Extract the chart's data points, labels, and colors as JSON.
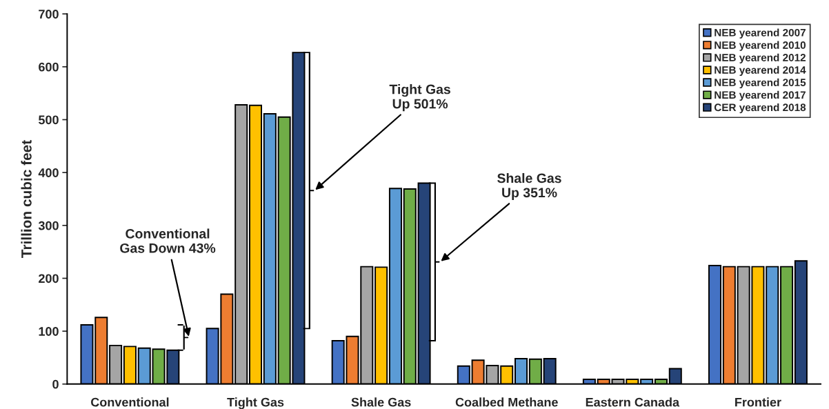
{
  "chart_data": {
    "type": "bar",
    "ylabel": "Trillion cubic feet",
    "categories": [
      "Conventional",
      "Tight Gas",
      "Shale Gas",
      "Coalbed Methane",
      "Eastern Canada",
      "Frontier"
    ],
    "series": [
      {
        "name": "NEB yearend 2007",
        "color": "#4472c4",
        "values": [
          112,
          105,
          82,
          34,
          9,
          224
        ]
      },
      {
        "name": "NEB yearend 2010",
        "color": "#ed7d31",
        "values": [
          126,
          170,
          90,
          45,
          9,
          222
        ]
      },
      {
        "name": "NEB yearend 2012",
        "color": "#a5a5a5",
        "values": [
          73,
          528,
          222,
          35,
          9,
          222
        ]
      },
      {
        "name": "NEB yearend 2014",
        "color": "#ffc000",
        "values": [
          71,
          527,
          221,
          34,
          9,
          222
        ]
      },
      {
        "name": "NEB yearend 2015",
        "color": "#5b9bd5",
        "values": [
          68,
          511,
          370,
          48,
          9,
          222
        ]
      },
      {
        "name": "NEB yearend 2017",
        "color": "#70ad47",
        "values": [
          66,
          505,
          369,
          47,
          9,
          222
        ]
      },
      {
        "name": "CER yearend 2018",
        "color": "#264478",
        "values": [
          64,
          627,
          380,
          48,
          29,
          233
        ]
      }
    ],
    "ylim": [
      0,
      700
    ],
    "yticks": [
      0,
      100,
      200,
      300,
      400,
      500,
      600,
      700
    ],
    "legend": "top right",
    "annotations": [
      "Conventional\nGas Down 43%",
      "Tight Gas\nUp 501%",
      "Shale Gas\nUp 351%"
    ]
  }
}
